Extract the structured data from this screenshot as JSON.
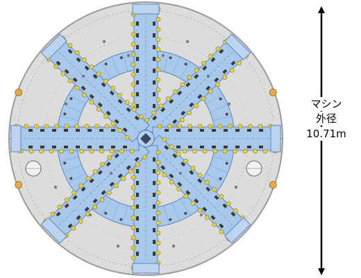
{
  "diagram": {
    "spoke_count": 8,
    "colors": {
      "face": "#dcdcdc",
      "face_edge": "#9a9a9a",
      "arm": "#a8c8ec",
      "arm_edge": "#5a86c0",
      "cutter": "#e2d24a",
      "cutter_edge": "#8a7a10",
      "shoe": "#e6a84a",
      "arrow": "#000000"
    },
    "dimension": {
      "line1": "マシン",
      "line2": "外径",
      "line3": "10.71m"
    }
  }
}
